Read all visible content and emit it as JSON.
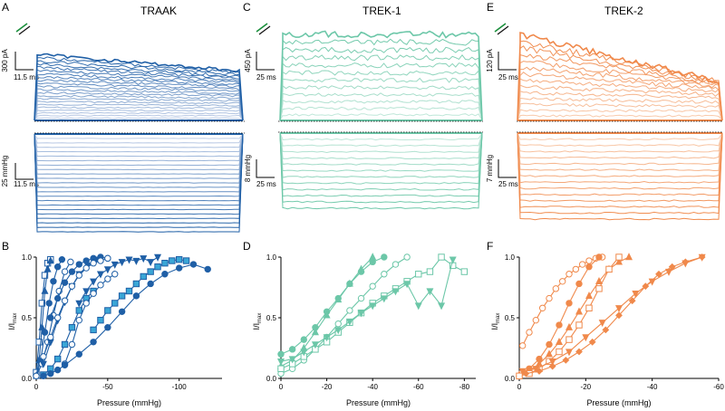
{
  "panels": [
    {
      "letter": "A",
      "title": "TRAAK",
      "color": "#1f5fa6",
      "light": "#c7d3ea",
      "current_scale": "300 pA",
      "current_time": "11.5 ms",
      "pressure_scale": "25 mmHg",
      "pressure_time": "11.5 ms"
    },
    {
      "letter": "C",
      "title": "TREK-1",
      "color": "#6cc7a8",
      "light": "#c6eadd",
      "current_scale": "450 pA",
      "current_time": "25 ms",
      "pressure_scale": "8 mmHg",
      "pressure_time": "25 ms"
    },
    {
      "letter": "E",
      "title": "TREK-2",
      "color": "#f0894b",
      "light": "#f9cfb3",
      "current_scale": "120 pA",
      "current_time": "25 ms",
      "pressure_scale": "7 mmHg",
      "pressure_time": "25 ms"
    }
  ],
  "chart_data": [
    {
      "type": "scatter",
      "panel": "B",
      "title": "",
      "xlabel": "Pressure (mmHg)",
      "ylabel": "I/I",
      "ylabel_sub": "max",
      "xlim": [
        0,
        -130
      ],
      "ylim": [
        0,
        1
      ],
      "xticks": [
        0,
        -50,
        -100
      ],
      "xticklabels": [
        "0",
        "-50",
        "-100"
      ],
      "yticks": [
        0,
        0.5,
        1.0
      ],
      "yticklabels": [
        "0.0",
        "0.5",
        "1.0"
      ],
      "color": "#1f5fa6",
      "accent": "#3aa6d6",
      "series": [
        {
          "marker": "square-open",
          "x": [
            0,
            -2,
            -4,
            -6,
            -8,
            -10
          ],
          "y": [
            0.05,
            0.3,
            0.62,
            0.85,
            0.95,
            0.98
          ]
        },
        {
          "marker": "triangle",
          "x": [
            0,
            -2,
            -4,
            -6,
            -8,
            -10
          ],
          "y": [
            0.02,
            0.15,
            0.42,
            0.72,
            0.9,
            0.97
          ]
        },
        {
          "marker": "circle",
          "x": [
            0,
            -3,
            -6,
            -9,
            -12,
            -15,
            -18
          ],
          "y": [
            0.02,
            0.14,
            0.38,
            0.62,
            0.8,
            0.92,
            0.98
          ]
        },
        {
          "marker": "circle-open",
          "x": [
            0,
            -4,
            -8,
            -12,
            -16,
            -20,
            -24
          ],
          "y": [
            0.02,
            0.12,
            0.3,
            0.52,
            0.72,
            0.88,
            0.96
          ]
        },
        {
          "marker": "triangle-down",
          "x": [
            -5,
            -10,
            -15,
            -20,
            -25,
            -30,
            -36,
            -42
          ],
          "y": [
            0.12,
            0.3,
            0.48,
            0.63,
            0.76,
            0.86,
            0.93,
            0.98
          ]
        },
        {
          "marker": "circle",
          "x": [
            -10,
            -15,
            -20,
            -25,
            -30,
            -35,
            -40,
            -45,
            -50
          ],
          "y": [
            0.5,
            0.66,
            0.79,
            0.88,
            0.94,
            0.97,
            0.99,
            1.0,
            0.99
          ]
        },
        {
          "marker": "circle-open",
          "x": [
            -5,
            -10,
            -15,
            -20,
            -25,
            -30,
            -35,
            -40,
            -45,
            -50
          ],
          "y": [
            0.18,
            0.34,
            0.5,
            0.64,
            0.76,
            0.85,
            0.91,
            0.95,
            0.97,
            0.99
          ]
        },
        {
          "marker": "triangle-down",
          "x": [
            -30,
            -35,
            -40,
            -45,
            -50,
            -55,
            -60,
            -65,
            -70,
            -75,
            -80,
            -85
          ],
          "y": [
            0.62,
            0.72,
            0.8,
            0.86,
            0.9,
            0.94,
            0.96,
            0.98,
            0.97,
            0.99,
            0.96,
            1.0
          ]
        },
        {
          "marker": "square",
          "x": [
            -5,
            -10,
            -15,
            -20,
            -25,
            -30,
            -35,
            -40
          ],
          "y": [
            0.03,
            0.08,
            0.16,
            0.28,
            0.42,
            0.56,
            0.66,
            0.72
          ]
        },
        {
          "marker": "circle-open",
          "x": [
            -20,
            -25,
            -30,
            -35,
            -40,
            -45,
            -50,
            -55
          ],
          "y": [
            0.12,
            0.28,
            0.48,
            0.62,
            0.7,
            0.77,
            0.82,
            0.86
          ]
        },
        {
          "marker": "square",
          "x": [
            -40,
            -45,
            -50,
            -55,
            -60,
            -65,
            -70,
            -75,
            -80,
            -85,
            -90,
            -95,
            -100,
            -105
          ],
          "y": [
            0.4,
            0.48,
            0.56,
            0.62,
            0.68,
            0.72,
            0.78,
            0.84,
            0.88,
            0.92,
            0.95,
            0.97,
            0.98,
            0.97
          ]
        },
        {
          "marker": "circle",
          "x": [
            -5,
            -10,
            -15,
            -20,
            -30,
            -40,
            -50,
            -60,
            -70,
            -80,
            -90,
            -100,
            -110,
            -120
          ],
          "y": [
            0.02,
            0.04,
            0.07,
            0.11,
            0.2,
            0.3,
            0.42,
            0.55,
            0.68,
            0.78,
            0.86,
            0.91,
            0.94,
            0.9
          ]
        }
      ]
    },
    {
      "type": "scatter",
      "panel": "D",
      "title": "",
      "xlabel": "Pressure (mmHg)",
      "ylabel": "I/I",
      "ylabel_sub": "max",
      "xlim": [
        0,
        -85
      ],
      "ylim": [
        0,
        1
      ],
      "xticks": [
        0,
        -20,
        -40,
        -60,
        -80
      ],
      "xticklabels": [
        "0",
        "-20",
        "-40",
        "-60",
        "-80"
      ],
      "yticks": [
        0,
        0.5,
        1.0
      ],
      "yticklabels": [
        "0.0",
        "0.5",
        "1.0"
      ],
      "color": "#6cc7a8",
      "accent": "#6cc7a8",
      "series": [
        {
          "marker": "circle",
          "x": [
            0,
            -5,
            -10,
            -15,
            -20,
            -25,
            -30,
            -35,
            -40,
            -45
          ],
          "y": [
            0.2,
            0.24,
            0.32,
            0.42,
            0.55,
            0.66,
            0.78,
            0.88,
            0.96,
            1.0
          ]
        },
        {
          "marker": "triangle",
          "x": [
            0,
            -5,
            -10,
            -15,
            -20,
            -25,
            -30,
            -35,
            -40
          ],
          "y": [
            0.1,
            0.15,
            0.25,
            0.38,
            0.52,
            0.65,
            0.78,
            0.9,
            1.0
          ]
        },
        {
          "marker": "circle-open",
          "x": [
            0,
            -5,
            -10,
            -15,
            -20,
            -25,
            -30,
            -35,
            -40,
            -45,
            -50,
            -55
          ],
          "y": [
            0.04,
            0.08,
            0.15,
            0.24,
            0.34,
            0.45,
            0.56,
            0.66,
            0.76,
            0.86,
            0.94,
            1.0
          ]
        },
        {
          "marker": "square-open",
          "x": [
            0,
            -5,
            -10,
            -15,
            -20,
            -25,
            -30,
            -35,
            -40,
            -45,
            -50,
            -55,
            -60,
            -65,
            -70,
            -75,
            -80
          ],
          "y": [
            0.08,
            0.12,
            0.18,
            0.24,
            0.3,
            0.38,
            0.46,
            0.54,
            0.62,
            0.68,
            0.74,
            0.8,
            0.86,
            0.88,
            1.0,
            0.93,
            0.88
          ]
        },
        {
          "marker": "triangle-down",
          "x": [
            0,
            -5,
            -10,
            -15,
            -20,
            -25,
            -30,
            -35,
            -40,
            -45,
            -50,
            -55,
            -60,
            -65,
            -70,
            -75
          ],
          "y": [
            0.14,
            0.16,
            0.22,
            0.28,
            0.34,
            0.4,
            0.47,
            0.54,
            0.6,
            0.66,
            0.72,
            0.78,
            0.6,
            0.72,
            0.6,
            0.98
          ]
        }
      ]
    },
    {
      "type": "scatter",
      "panel": "F",
      "title": "",
      "xlabel": "Pressure (mmHg)",
      "ylabel": "I/I",
      "ylabel_sub": "max",
      "xlim": [
        0,
        -60
      ],
      "ylim": [
        0,
        1
      ],
      "xticks": [
        0,
        -20,
        -40,
        -60
      ],
      "xticklabels": [
        "0",
        "-20",
        "-40",
        "-60"
      ],
      "yticks": [
        0,
        0.5,
        1.0
      ],
      "yticklabels": [
        "0.0",
        "0.5",
        "1.0"
      ],
      "color": "#f0894b",
      "accent": "#f0894b",
      "series": [
        {
          "marker": "circle-open",
          "x": [
            -1,
            -3,
            -5,
            -7,
            -9,
            -11,
            -13,
            -15,
            -17,
            -19,
            -21,
            -23,
            -25
          ],
          "y": [
            0.27,
            0.38,
            0.48,
            0.58,
            0.66,
            0.74,
            0.8,
            0.86,
            0.9,
            0.94,
            0.97,
            0.99,
            1.0
          ]
        },
        {
          "marker": "circle",
          "x": [
            0,
            -3,
            -6,
            -9,
            -12,
            -15,
            -18,
            -21,
            -24
          ],
          "y": [
            0.02,
            0.08,
            0.16,
            0.28,
            0.44,
            0.62,
            0.78,
            0.92,
            1.0
          ]
        },
        {
          "marker": "triangle",
          "x": [
            0,
            -3,
            -6,
            -9,
            -12,
            -15,
            -18,
            -21,
            -24,
            -27,
            -30,
            -33
          ],
          "y": [
            0.03,
            0.06,
            0.12,
            0.2,
            0.3,
            0.42,
            0.55,
            0.68,
            0.8,
            0.9,
            0.96,
            1.0
          ]
        },
        {
          "marker": "square-open",
          "x": [
            0,
            -3,
            -6,
            -9,
            -12,
            -15,
            -18,
            -21,
            -24,
            -27,
            -30
          ],
          "y": [
            0.02,
            0.04,
            0.08,
            0.14,
            0.22,
            0.32,
            0.44,
            0.58,
            0.74,
            0.9,
            1.0
          ]
        },
        {
          "marker": "triangle-down",
          "x": [
            -1,
            -5,
            -10,
            -15,
            -20,
            -25,
            -30,
            -35,
            -40,
            -45,
            -50,
            -55
          ],
          "y": [
            0.06,
            0.08,
            0.14,
            0.22,
            0.34,
            0.46,
            0.58,
            0.7,
            0.8,
            0.88,
            0.95,
            1.0
          ]
        },
        {
          "marker": "diamond",
          "x": [
            -2,
            -6,
            -10,
            -14,
            -18,
            -22,
            -26,
            -30,
            -34,
            -38,
            -42,
            -46,
            -50,
            -55
          ],
          "y": [
            0.04,
            0.06,
            0.1,
            0.15,
            0.22,
            0.3,
            0.4,
            0.52,
            0.64,
            0.76,
            0.86,
            0.92,
            0.96,
            1.0
          ]
        }
      ]
    }
  ]
}
